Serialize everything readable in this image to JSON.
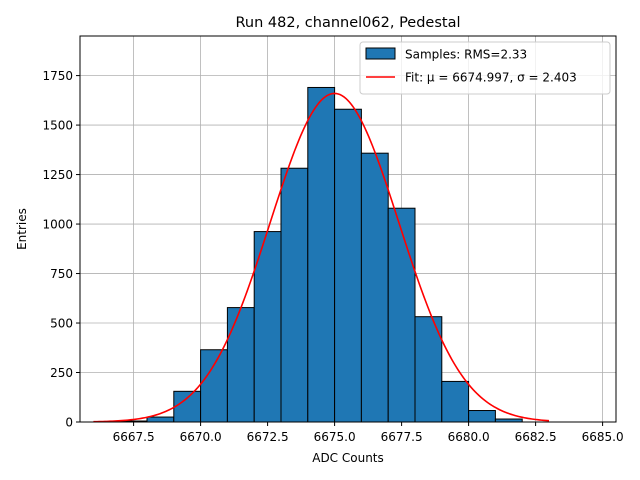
{
  "chart_data": {
    "type": "bar",
    "title": "Run 482, channel062, Pedestal",
    "xlabel": "ADC Counts",
    "ylabel": "Entries",
    "xlim": [
      6665.5,
      6685.5
    ],
    "ylim": [
      0,
      1950
    ],
    "xticks": [
      6667.5,
      6670.0,
      6672.5,
      6675.0,
      6677.5,
      6680.0,
      6682.5,
      6685.0
    ],
    "xtick_labels": [
      "6667.5",
      "6670.0",
      "6672.5",
      "6675.0",
      "6677.5",
      "6680.0",
      "6682.5",
      "6685.0"
    ],
    "yticks": [
      0,
      250,
      500,
      750,
      1000,
      1250,
      1500,
      1750
    ],
    "ytick_labels": [
      "0",
      "250",
      "500",
      "750",
      "1000",
      "1250",
      "1500",
      "1750"
    ],
    "grid": true,
    "legend_position": "upper-right",
    "bins": {
      "edges": [
        6667,
        6668,
        6669,
        6670,
        6671,
        6672,
        6673,
        6674,
        6675,
        6676,
        6677,
        6678,
        6679,
        6680,
        6681,
        6682
      ],
      "counts": [
        5,
        25,
        155,
        365,
        578,
        962,
        1282,
        1690,
        1580,
        1358,
        1080,
        532,
        205,
        58,
        15
      ]
    },
    "series": [
      {
        "name": "Samples: RMS=2.33",
        "kind": "histogram",
        "color": "#1f77b4",
        "edgecolor": "#000000"
      },
      {
        "name": "Fit: μ = 6674.997, σ = 2.403",
        "kind": "gaussian_fit",
        "color": "#ff0000",
        "mu": 6674.997,
        "sigma": 2.403,
        "amplitude": 1660,
        "x_range": [
          6666.0,
          6683.0
        ]
      }
    ]
  }
}
